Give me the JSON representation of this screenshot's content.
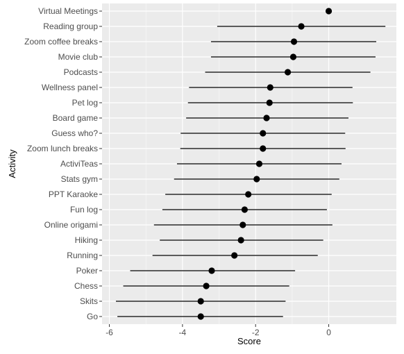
{
  "chart_data": {
    "type": "scatter",
    "title": "",
    "xlabel": "Score",
    "ylabel": "Activity",
    "xlim": [
      -6.2,
      1.85
    ],
    "xticks": [
      -6,
      -4,
      -2,
      0
    ],
    "grid": true,
    "panel_color": "#ebebeb",
    "grid_color": "#ffffff",
    "point_color": "#000000",
    "categories": [
      "Virtual Meetings",
      "Reading group",
      "Zoom coffee breaks",
      "Movie club",
      "Podcasts",
      "Wellness panel",
      "Pet log",
      "Board game",
      "Guess who?",
      "Zoom lunch breaks",
      "ActiviTeas",
      "Stats gym",
      "PPT Karaoke",
      "Fun log",
      "Online origami",
      "Hiking",
      "Running",
      "Poker",
      "Chess",
      "Skits",
      "Go"
    ],
    "estimate": [
      0.0,
      -0.75,
      -0.95,
      -0.97,
      -1.12,
      -1.6,
      -1.62,
      -1.7,
      -1.8,
      -1.8,
      -1.9,
      -1.97,
      -2.2,
      -2.3,
      -2.35,
      -2.4,
      -2.58,
      -3.2,
      -3.35,
      -3.5,
      -3.5
    ],
    "lower": [
      null,
      -3.05,
      -3.22,
      -3.22,
      -3.38,
      -3.82,
      -3.85,
      -3.9,
      -4.05,
      -4.06,
      -4.15,
      -4.23,
      -4.47,
      -4.55,
      -4.78,
      -4.62,
      -4.82,
      -5.43,
      -5.62,
      -5.82,
      -5.78
    ],
    "upper": [
      null,
      1.55,
      1.3,
      1.28,
      1.14,
      0.65,
      0.66,
      0.54,
      0.45,
      0.46,
      0.35,
      0.29,
      0.08,
      -0.05,
      0.1,
      -0.15,
      -0.3,
      -0.92,
      -1.08,
      -1.18,
      -1.25
    ]
  }
}
